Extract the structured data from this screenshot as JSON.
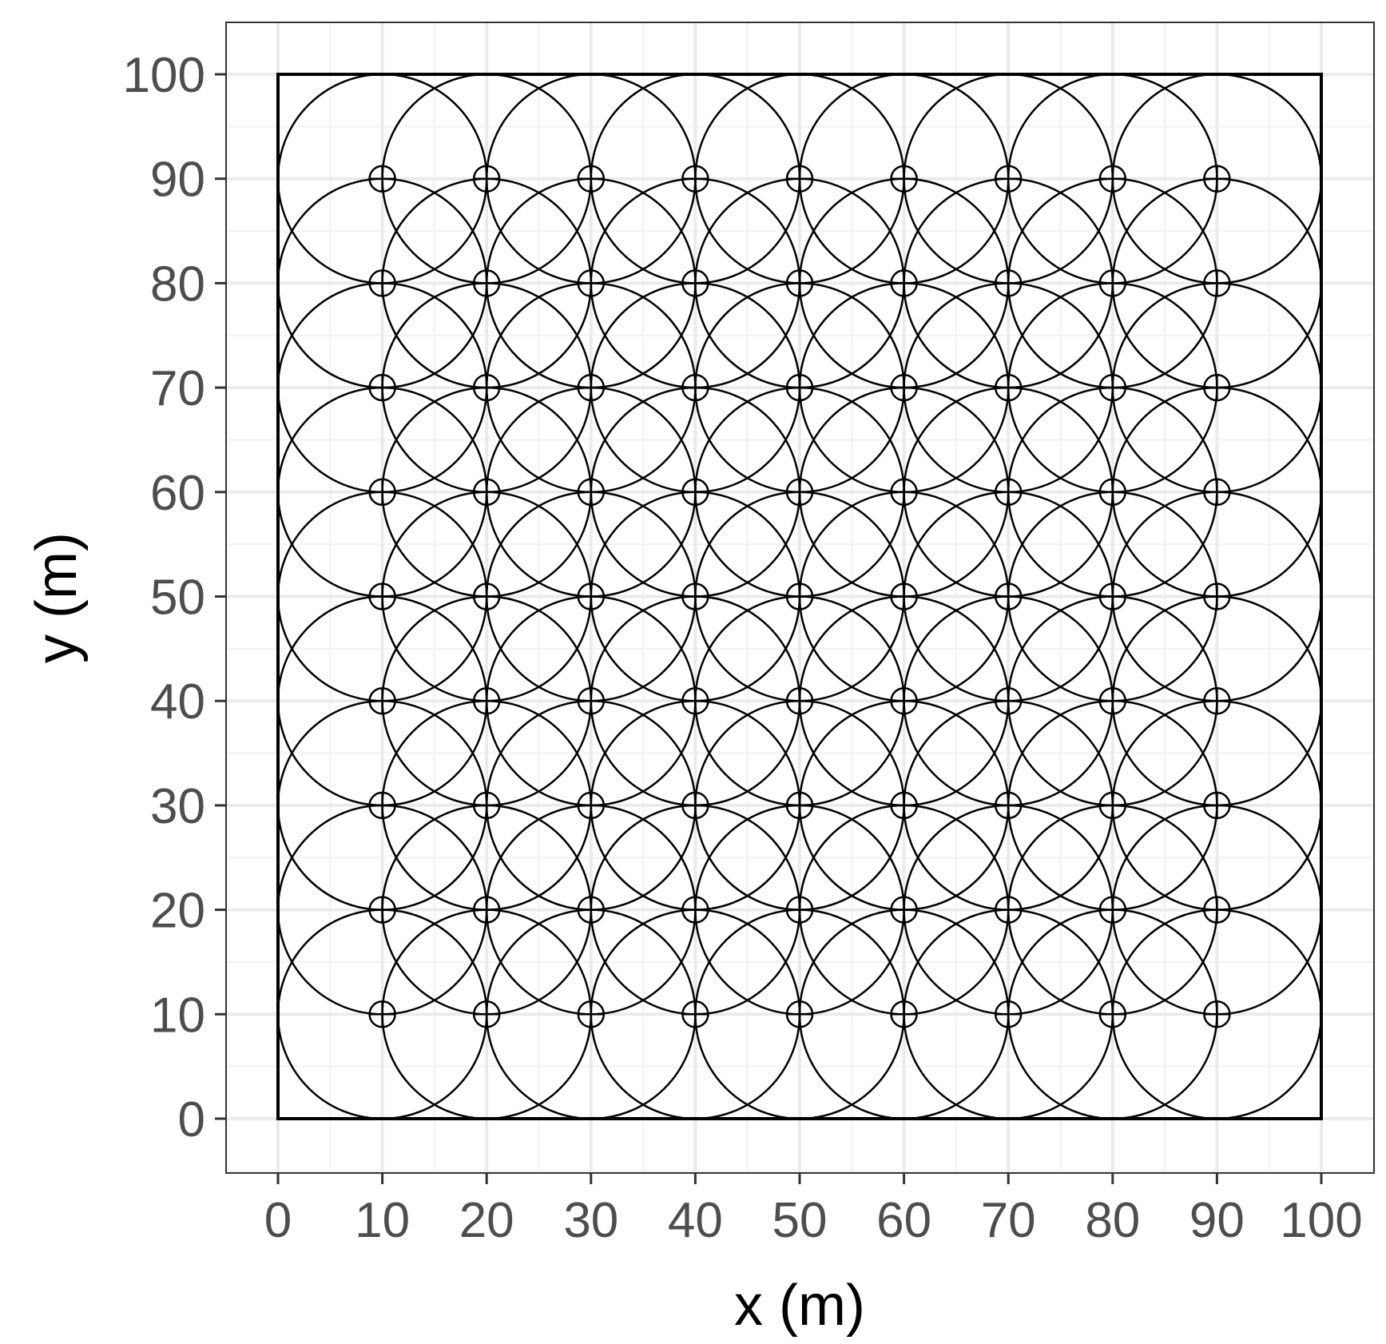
{
  "chart_data": {
    "type": "scatter",
    "title": "",
    "xlabel": "x (m)",
    "ylabel": "y (m)",
    "xlim": [
      -10,
      105
    ],
    "ylim": [
      -5,
      105
    ],
    "x_ticks": [
      0,
      10,
      20,
      30,
      40,
      50,
      60,
      70,
      80,
      90,
      100
    ],
    "y_ticks": [
      0,
      10,
      20,
      30,
      40,
      50,
      60,
      70,
      80,
      90,
      100
    ],
    "x_tick_labels": [
      "0",
      "10",
      "20",
      "30",
      "40",
      "50",
      "60",
      "70",
      "80",
      "90",
      "100"
    ],
    "y_tick_labels": [
      "0",
      "10",
      "20",
      "30",
      "40",
      "50",
      "60",
      "70",
      "80",
      "90",
      "100"
    ],
    "grid": true,
    "domain_boundary": [
      [
        0,
        0
      ],
      [
        100,
        0
      ],
      [
        100,
        100
      ],
      [
        0,
        100
      ]
    ],
    "point_x": [
      10,
      20,
      30,
      40,
      50,
      60,
      70,
      80,
      90
    ],
    "point_y": [
      10,
      20,
      30,
      40,
      50,
      60,
      70,
      80,
      90
    ],
    "point_marker": "circle-plus",
    "coverage_radius": 10,
    "colors": {
      "background": "#ffffff",
      "grid_major": "#ebebeb",
      "grid_minor": "#f2f2f2",
      "panel_border": "#333333",
      "marks": "#000000",
      "tick_label": "#4d4d4d"
    }
  }
}
